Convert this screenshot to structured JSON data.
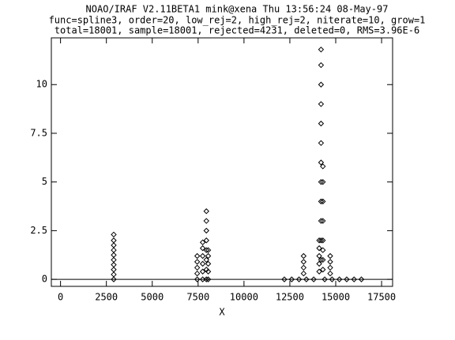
{
  "chart_data": {
    "type": "scatter",
    "title": "NOAO/IRAF V2.11BETA1 mink@xena Thu 13:56:24 08-May-97",
    "subtitle": "func=spline3, order=20, low_rej=2, high_rej=2, niterate=10, grow=1",
    "annotation": "total=18001, sample=18001, rejected=4231, deleted=0, RMS=3.96E-6",
    "xlabel": "X",
    "xlim": [
      -500,
      18100
    ],
    "ylim": [
      -0.36,
      12.4
    ],
    "xticks": [
      0,
      2500,
      5000,
      7500,
      10000,
      12500,
      15000,
      17500
    ],
    "yticks": [
      0,
      2.5,
      5,
      7.5,
      10
    ],
    "color": "#000000",
    "x": [
      2900,
      2900,
      2900,
      2900,
      2900,
      2900,
      2900,
      2900,
      2900,
      2900,
      7450,
      7450,
      7450,
      7450,
      7450,
      7750,
      7750,
      7750,
      7750,
      7750,
      7750,
      7950,
      7950,
      7950,
      7950,
      7950,
      7950,
      7950,
      7950,
      8050,
      8050,
      8050,
      8050,
      8050,
      12200,
      12600,
      13000,
      13400,
      13800,
      14400,
      14800,
      15200,
      15600,
      16000,
      16400,
      13250,
      13250,
      13250,
      13250,
      14100,
      14100,
      14100,
      14100,
      14100,
      14200,
      14200,
      14200,
      14200,
      14200,
      14200,
      14200,
      14200,
      14200,
      14200,
      14200,
      14200,
      14300,
      14300,
      14300,
      14300,
      14300,
      14300,
      14300,
      14300,
      14700,
      14700,
      14700,
      14700
    ],
    "y": [
      0,
      0.25,
      0.5,
      0.75,
      1,
      1.25,
      1.5,
      1.75,
      2,
      2.3,
      0,
      0.3,
      0.6,
      0.9,
      1.2,
      0,
      0.4,
      0.8,
      1.2,
      1.6,
      1.9,
      0,
      0.5,
      1,
      1.5,
      2,
      2.5,
      3,
      3.5,
      0,
      0.4,
      0.8,
      1.2,
      1.5,
      0,
      0,
      0,
      0,
      0,
      0,
      0,
      0,
      0,
      0,
      0,
      0.3,
      0.6,
      0.9,
      1.2,
      0.4,
      0.8,
      1.2,
      1.6,
      2,
      1,
      2,
      3,
      4,
      5,
      6,
      7,
      8,
      9,
      10,
      11,
      11.8,
      0.5,
      1,
      1.5,
      2,
      3,
      4,
      5,
      5.8,
      0.3,
      0.6,
      0.9,
      1.2
    ],
    "fit": {
      "x": [
        -500,
        18100
      ],
      "y": [
        0,
        0
      ]
    }
  }
}
